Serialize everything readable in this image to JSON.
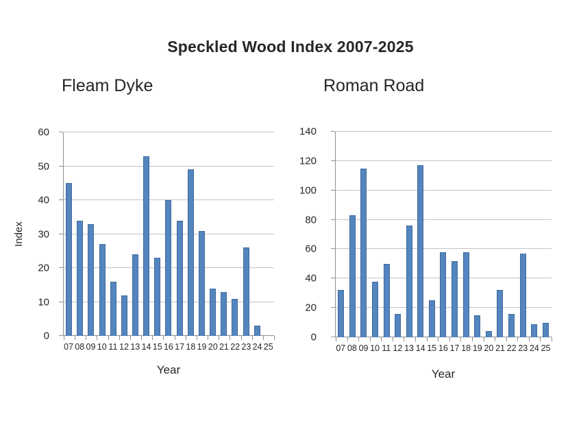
{
  "page": {
    "title": "Speckled Wood Index 2007-2025"
  },
  "colors": {
    "bar_fill": "#5585BE",
    "bar_border": "#3D6A9D",
    "gridline": "#C3C3C3",
    "axis": "#8E8E8E",
    "text": "#262626"
  },
  "chart_data": [
    {
      "type": "bar",
      "title": "Fleam Dyke",
      "xlabel": "Year",
      "ylabel": "Index",
      "ylim": [
        0,
        60
      ],
      "yticks": [
        0,
        10,
        20,
        30,
        40,
        50,
        60
      ],
      "grid": true,
      "legend": "none",
      "categories": [
        "07",
        "08",
        "09",
        "10",
        "11",
        "12",
        "13",
        "14",
        "15",
        "16",
        "17",
        "18",
        "19",
        "20",
        "21",
        "22",
        "23",
        "24",
        "25"
      ],
      "values": [
        45,
        34,
        33,
        27,
        16,
        12,
        24,
        53,
        23,
        40,
        34,
        49,
        31,
        14,
        13,
        11,
        26,
        3,
        0
      ]
    },
    {
      "type": "bar",
      "title": "Roman Road",
      "xlabel": "Year",
      "ylabel": "",
      "ylim": [
        0,
        140
      ],
      "yticks": [
        0,
        20,
        40,
        60,
        80,
        100,
        120,
        140
      ],
      "grid": true,
      "legend": "none",
      "categories": [
        "07",
        "08",
        "09",
        "10",
        "11",
        "12",
        "13",
        "14",
        "15",
        "16",
        "17",
        "18",
        "19",
        "20",
        "21",
        "22",
        "23",
        "24",
        "25"
      ],
      "values": [
        32,
        83,
        115,
        38,
        50,
        16,
        76,
        117,
        25,
        58,
        52,
        58,
        15,
        4,
        32,
        16,
        57,
        9,
        10
      ]
    }
  ]
}
